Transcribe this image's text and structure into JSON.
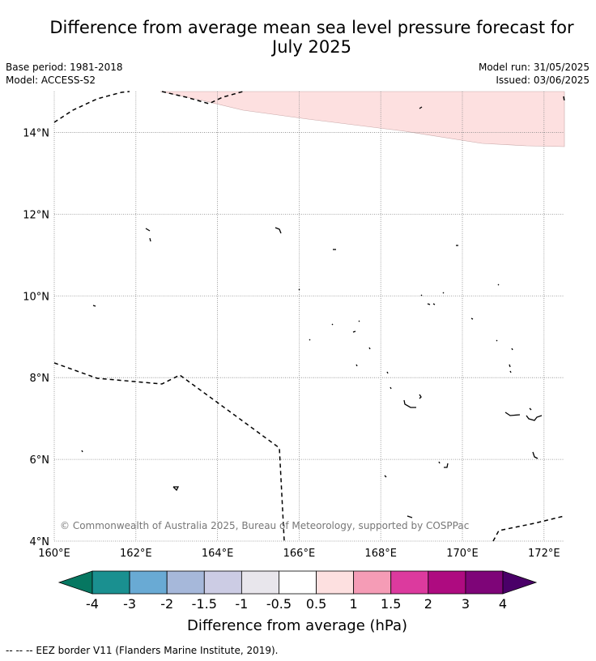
{
  "title_line1": "Difference from average mean sea level pressure forecast for",
  "title_line2": "July 2025",
  "base_period": "Base period: 1981-2018",
  "model": "Model: ACCESS-S2",
  "model_run": "Model run: 31/05/2025",
  "issued": "Issued: 03/06/2025",
  "copyright": "© Commonwealth of Australia 2025, Bureau of Meteorology, supported by COSPPac",
  "footnote": "--  --  -- EEZ border V11 (Flanders Marine Institute, 2019).",
  "map": {
    "lon_range": [
      160,
      172.5
    ],
    "lat_range": [
      4,
      15
    ],
    "lon_ticks": [
      "160°E",
      "162°E",
      "164°E",
      "166°E",
      "168°E",
      "170°E",
      "172°E"
    ],
    "lat_ticks": [
      "4°N",
      "6°N",
      "8°N",
      "10°N",
      "12°N",
      "14°N"
    ],
    "gridlines": true,
    "anomaly_region_class": "0.5 to 1",
    "anomaly_region_color": "#fde0e0"
  },
  "colorbar": {
    "title": "Difference from average (hPa)",
    "labels": [
      "-4",
      "-3",
      "-2",
      "-1.5",
      "-1",
      "-0.5",
      "0.5",
      "1",
      "1.5",
      "2",
      "3",
      "4"
    ],
    "colors": [
      "#1a9090",
      "#69aad4",
      "#a6b8da",
      "#cccce4",
      "#e8e6ec",
      "#ffffff",
      "#fde0e0",
      "#f59cb6",
      "#dc3a9e",
      "#ae0b80",
      "#7e0578"
    ],
    "under_color": "#067761",
    "over_color": "#4a0068"
  },
  "colors": {
    "gridline": "#888888",
    "eez_line": "#000000"
  }
}
